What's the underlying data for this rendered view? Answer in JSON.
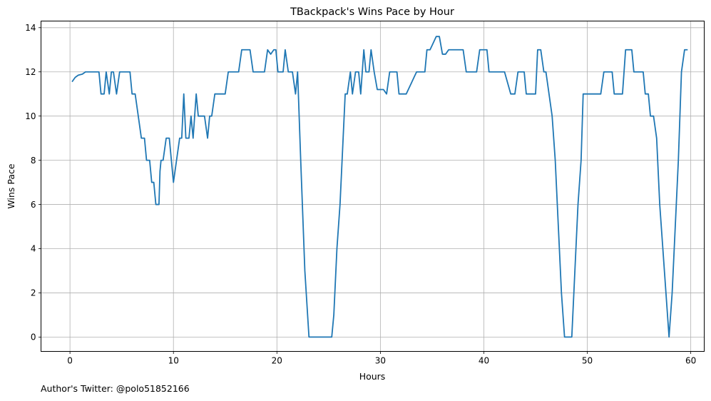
{
  "chart_data": {
    "type": "line",
    "title": "TBackpack's Wins Pace by Hour",
    "xlabel": "Hours",
    "ylabel": "Wins Pace",
    "xlim": [
      -2.8,
      61.3
    ],
    "ylim": [
      -0.65,
      14.3
    ],
    "xticks": [
      0,
      10,
      20,
      30,
      40,
      50,
      60
    ],
    "yticks": [
      0,
      2,
      4,
      6,
      8,
      10,
      12,
      14
    ],
    "grid": true,
    "series": [
      {
        "color": "#1f77b4",
        "points": [
          [
            0.2,
            11.55
          ],
          [
            0.5,
            11.75
          ],
          [
            0.8,
            11.85
          ],
          [
            1.2,
            11.9
          ],
          [
            1.5,
            12.0
          ],
          [
            2.0,
            12.0
          ],
          [
            2.5,
            12.0
          ],
          [
            2.8,
            12.0
          ],
          [
            3.0,
            11.0
          ],
          [
            3.3,
            11.0
          ],
          [
            3.5,
            12.0
          ],
          [
            3.8,
            11.0
          ],
          [
            4.0,
            12.0
          ],
          [
            4.2,
            12.0
          ],
          [
            4.5,
            11.0
          ],
          [
            4.8,
            12.0
          ],
          [
            5.2,
            12.0
          ],
          [
            5.8,
            12.0
          ],
          [
            6.0,
            11.0
          ],
          [
            6.3,
            11.0
          ],
          [
            6.6,
            10.0
          ],
          [
            6.9,
            9.0
          ],
          [
            7.2,
            9.0
          ],
          [
            7.4,
            8.0
          ],
          [
            7.7,
            8.0
          ],
          [
            7.9,
            7.0
          ],
          [
            8.1,
            7.0
          ],
          [
            8.3,
            6.0
          ],
          [
            8.6,
            6.0
          ],
          [
            8.7,
            7.5
          ],
          [
            8.8,
            8.0
          ],
          [
            9.0,
            8.0
          ],
          [
            9.3,
            9.0
          ],
          [
            9.6,
            9.0
          ],
          [
            9.8,
            8.0
          ],
          [
            10.0,
            7.0
          ],
          [
            10.3,
            8.0
          ],
          [
            10.6,
            9.0
          ],
          [
            10.8,
            9.0
          ],
          [
            11.0,
            11.0
          ],
          [
            11.2,
            9.0
          ],
          [
            11.5,
            9.0
          ],
          [
            11.7,
            10.0
          ],
          [
            11.9,
            9.0
          ],
          [
            12.2,
            11.0
          ],
          [
            12.4,
            10.0
          ],
          [
            12.8,
            10.0
          ],
          [
            13.0,
            10.0
          ],
          [
            13.3,
            9.0
          ],
          [
            13.5,
            10.0
          ],
          [
            13.7,
            10.0
          ],
          [
            14.0,
            11.0
          ],
          [
            14.5,
            11.0
          ],
          [
            15.0,
            11.0
          ],
          [
            15.3,
            12.0
          ],
          [
            16.0,
            12.0
          ],
          [
            16.3,
            12.0
          ],
          [
            16.6,
            13.0
          ],
          [
            17.0,
            13.0
          ],
          [
            17.4,
            13.0
          ],
          [
            17.7,
            12.0
          ],
          [
            18.5,
            12.0
          ],
          [
            18.8,
            12.0
          ],
          [
            19.1,
            13.0
          ],
          [
            19.4,
            12.8
          ],
          [
            19.7,
            13.0
          ],
          [
            19.9,
            13.0
          ],
          [
            20.1,
            12.0
          ],
          [
            20.4,
            12.0
          ],
          [
            20.6,
            12.0
          ],
          [
            20.8,
            13.0
          ],
          [
            21.1,
            12.0
          ],
          [
            21.5,
            12.0
          ],
          [
            21.8,
            11.0
          ],
          [
            22.0,
            12.0
          ],
          [
            22.3,
            8.0
          ],
          [
            22.7,
            3.0
          ],
          [
            23.1,
            0.0
          ],
          [
            24.0,
            0.0
          ],
          [
            25.0,
            0.0
          ],
          [
            25.3,
            0.0
          ],
          [
            25.5,
            1.0
          ],
          [
            25.8,
            4.0
          ],
          [
            26.1,
            6.0
          ],
          [
            26.4,
            9.0
          ],
          [
            26.6,
            11.0
          ],
          [
            26.8,
            11.0
          ],
          [
            27.1,
            12.0
          ],
          [
            27.3,
            11.0
          ],
          [
            27.6,
            12.0
          ],
          [
            27.9,
            12.0
          ],
          [
            28.1,
            11.0
          ],
          [
            28.4,
            13.0
          ],
          [
            28.6,
            12.0
          ],
          [
            28.9,
            12.0
          ],
          [
            29.1,
            13.0
          ],
          [
            29.4,
            12.0
          ],
          [
            29.7,
            11.2
          ],
          [
            30.0,
            11.2
          ],
          [
            30.3,
            11.2
          ],
          [
            30.6,
            11.0
          ],
          [
            30.9,
            12.0
          ],
          [
            31.2,
            12.0
          ],
          [
            31.6,
            12.0
          ],
          [
            31.8,
            11.0
          ],
          [
            32.2,
            11.0
          ],
          [
            32.5,
            11.0
          ],
          [
            33.0,
            11.5
          ],
          [
            33.3,
            11.8
          ],
          [
            33.5,
            12.0
          ],
          [
            34.0,
            12.0
          ],
          [
            34.3,
            12.0
          ],
          [
            34.5,
            13.0
          ],
          [
            34.8,
            13.0
          ],
          [
            35.0,
            13.2
          ],
          [
            35.4,
            13.6
          ],
          [
            35.7,
            13.6
          ],
          [
            36.0,
            12.8
          ],
          [
            36.3,
            12.8
          ],
          [
            36.6,
            13.0
          ],
          [
            37.0,
            13.0
          ],
          [
            37.5,
            13.0
          ],
          [
            38.0,
            13.0
          ],
          [
            38.3,
            12.0
          ],
          [
            38.7,
            12.0
          ],
          [
            39.0,
            12.0
          ],
          [
            39.3,
            12.0
          ],
          [
            39.6,
            13.0
          ],
          [
            40.0,
            13.0
          ],
          [
            40.3,
            13.0
          ],
          [
            40.5,
            12.0
          ],
          [
            41.0,
            12.0
          ],
          [
            41.5,
            12.0
          ],
          [
            42.0,
            12.0
          ],
          [
            42.3,
            11.5
          ],
          [
            42.6,
            11.0
          ],
          [
            43.0,
            11.0
          ],
          [
            43.3,
            12.0
          ],
          [
            43.7,
            12.0
          ],
          [
            43.9,
            12.0
          ],
          [
            44.1,
            11.0
          ],
          [
            44.4,
            11.0
          ],
          [
            44.8,
            11.0
          ],
          [
            45.0,
            11.0
          ],
          [
            45.2,
            13.0
          ],
          [
            45.5,
            13.0
          ],
          [
            45.8,
            12.0
          ],
          [
            46.0,
            12.0
          ],
          [
            46.3,
            11.0
          ],
          [
            46.6,
            10.0
          ],
          [
            46.9,
            8.0
          ],
          [
            47.2,
            5.0
          ],
          [
            47.5,
            2.0
          ],
          [
            47.8,
            0.0
          ],
          [
            48.1,
            0.0
          ],
          [
            48.5,
            0.0
          ],
          [
            48.8,
            3.0
          ],
          [
            49.1,
            6.0
          ],
          [
            49.4,
            8.0
          ],
          [
            49.6,
            11.0
          ],
          [
            50.0,
            11.0
          ],
          [
            50.5,
            11.0
          ],
          [
            51.0,
            11.0
          ],
          [
            51.3,
            11.0
          ],
          [
            51.6,
            12.0
          ],
          [
            52.0,
            12.0
          ],
          [
            52.4,
            12.0
          ],
          [
            52.6,
            11.0
          ],
          [
            53.0,
            11.0
          ],
          [
            53.4,
            11.0
          ],
          [
            53.7,
            13.0
          ],
          [
            54.0,
            13.0
          ],
          [
            54.3,
            13.0
          ],
          [
            54.5,
            12.0
          ],
          [
            55.0,
            12.0
          ],
          [
            55.4,
            12.0
          ],
          [
            55.6,
            11.0
          ],
          [
            55.9,
            11.0
          ],
          [
            56.1,
            10.0
          ],
          [
            56.4,
            10.0
          ],
          [
            56.7,
            9.0
          ],
          [
            57.0,
            6.0
          ],
          [
            57.3,
            4.0
          ],
          [
            57.6,
            2.0
          ],
          [
            57.9,
            0.0
          ],
          [
            58.2,
            2.0
          ],
          [
            58.5,
            5.0
          ],
          [
            58.8,
            8.0
          ],
          [
            59.1,
            12.0
          ],
          [
            59.4,
            13.0
          ],
          [
            59.7,
            13.0
          ]
        ]
      }
    ]
  },
  "footnote": "Author's Twitter: @polo51852166"
}
